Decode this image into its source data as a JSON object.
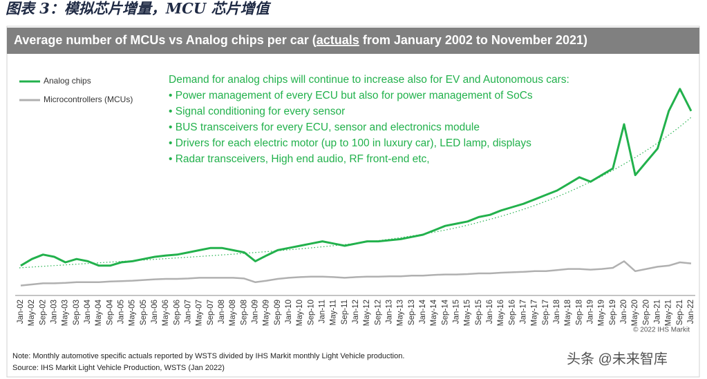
{
  "caption": "图表 3：模拟芯片增量，MCU 芯片增值",
  "chart_data": {
    "type": "line",
    "title": [
      "Average number of MCUs vs Analog chips per car (",
      "actuals",
      " from January 2002 to November 2021)"
    ],
    "categories": [
      "Jan-02",
      "May-02",
      "Sep-02",
      "Jan-03",
      "May-03",
      "Sep-03",
      "Jan-04",
      "May-04",
      "Sep-04",
      "Jan-05",
      "May-05",
      "Sep-05",
      "Jan-06",
      "May-06",
      "Sep-06",
      "Jan-07",
      "May-07",
      "Sep-07",
      "Jan-08",
      "May-08",
      "Sep-08",
      "Jan-09",
      "May-09",
      "Sep-09",
      "Jan-10",
      "May-10",
      "Sep-10",
      "Jan-11",
      "May-11",
      "Sep-11",
      "Jan-12",
      "May-12",
      "Sep-12",
      "Jan-13",
      "May-13",
      "Sep-13",
      "Jan-14",
      "May-14",
      "Sep-14",
      "Jan-15",
      "May-15",
      "Sep-15",
      "Jan-16",
      "May-16",
      "Sep-16",
      "Jan-17",
      "May-17",
      "Sep-17",
      "Jan-18",
      "May-18",
      "Sep-18",
      "Jan-19",
      "May-19",
      "Sep-19",
      "Jan-20",
      "May-20",
      "Sep-20",
      "Jan-21",
      "May-21",
      "Sep-21",
      "Jan-22"
    ],
    "series": [
      {
        "name": "Analog chips",
        "color": "#22b14c",
        "values": [
          11,
          14,
          16,
          15,
          12.5,
          14,
          13,
          11,
          11,
          12.5,
          13,
          14,
          15,
          15.6,
          16,
          17,
          18,
          19,
          19,
          18,
          17,
          13,
          15.6,
          18,
          19,
          20,
          21,
          22,
          21,
          20,
          21,
          22,
          22,
          22.5,
          23,
          24,
          25,
          27,
          29,
          30,
          31,
          33,
          34,
          36,
          37.5,
          39,
          41,
          43,
          45,
          48,
          51,
          49,
          52,
          55,
          75,
          52,
          58,
          64,
          81,
          91,
          81
        ]
      },
      {
        "name": "Microcontrollers (MCUs)",
        "color": "#b0b0b0",
        "values": [
          2,
          2.5,
          3,
          3,
          3.2,
          3.5,
          3.5,
          3.5,
          3.8,
          4,
          4.2,
          4.5,
          4.8,
          5,
          5,
          5.2,
          5.5,
          5.5,
          5.5,
          5.5,
          5.2,
          3.5,
          4.2,
          5,
          5.5,
          5.8,
          6,
          6,
          5.8,
          5.5,
          5.8,
          6,
          6,
          6.2,
          6.2,
          6.5,
          6.5,
          6.8,
          7,
          7,
          7.2,
          7.5,
          7.5,
          7.8,
          8,
          8.2,
          8.5,
          8.5,
          9,
          9.5,
          9.5,
          9.2,
          9.5,
          10,
          13,
          8.5,
          9.5,
          10.5,
          11,
          12.5,
          12
        ]
      }
    ],
    "ylim": [
      0,
      100
    ],
    "annotation": [
      "Demand for analog chips will continue to increase also for EV and Autonomous cars:",
      "•  Power management of every ECU but also for power management of SoCs",
      "•  Signal conditioning for every sensor",
      "•  BUS transceivers for every ECU, sensor and electronics module",
      "•  Drivers for each electric motor (up to 100 in luxury car), LED lamp, displays",
      "•  Radar transceivers, High end audio, RF front-end etc,"
    ],
    "copyright": "© 2022 IHS Markit",
    "notes": [
      "Note: Monthly automotive specific actuals reported by WSTS divided by IHS Markit monthly Light Vehicle production.",
      "Source: IHS Markit Light Vehicle Production, WSTS (Jan 2022)"
    ]
  },
  "watermark": "头条 @未来智库"
}
